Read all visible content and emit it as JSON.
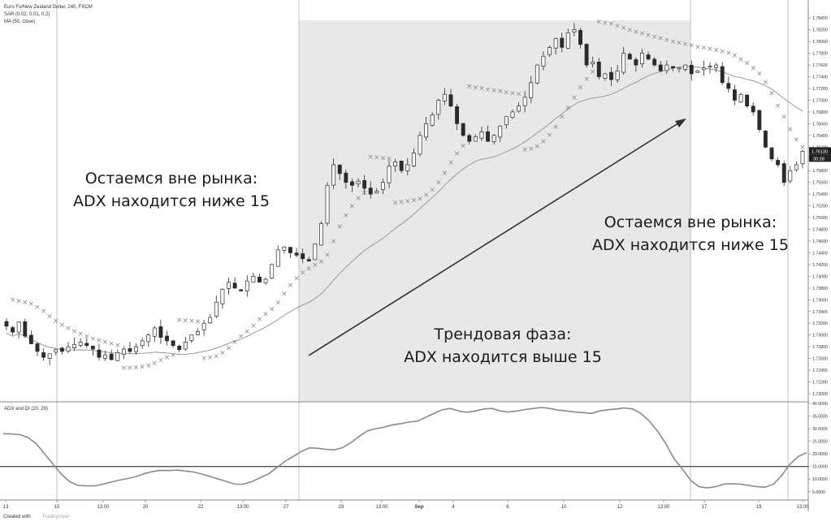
{
  "header": {
    "symbol": "Euro Fx/New Zealand Dollar, 240, FXCM",
    "sar_label": "SAR (0.02, 0.01, 0.2)",
    "ma_label": "MA (50, close)"
  },
  "sub_header": {
    "adx_label": "ADX and DI (20, 20)"
  },
  "annotations": {
    "left_line1": "Остаемся вне рынка:",
    "left_line2": "ADX находится ниже 15",
    "right_line1": "Остаемся вне рынка:",
    "right_line2": "ADX находится ниже 15",
    "center_line1": "Трендовая фаза:",
    "center_line2": "ADX находится выше 15"
  },
  "footer": {
    "created_with": "Created with",
    "brand": "TradingView"
  },
  "price_tags": {
    "last_price": "1.76130",
    "countdown": "30:28"
  },
  "colors": {
    "shade": "#e8e8e8",
    "candle": "#2a2a2a",
    "sar": "#8a8a8a",
    "ma": "#9a9a9a",
    "adx": "#8a8a8a",
    "threshold": "#555555"
  },
  "chart_data": [
    {
      "type": "line",
      "title": "",
      "series_desc": "EUR/NZD 4h candlesticks with Parabolic SAR and MA(50)",
      "y_ticks": [
        "1.78400",
        "1.78200",
        "1.78000",
        "1.77800",
        "1.77600",
        "1.77400",
        "1.77200",
        "1.77000",
        "1.76800",
        "1.76600",
        "1.76400",
        "1.76200",
        "1.76000",
        "1.75800",
        "1.75600",
        "1.75400",
        "1.75200",
        "1.75000",
        "1.74800",
        "1.74600",
        "1.74400",
        "1.74200",
        "1.74000",
        "1.73800",
        "1.73600",
        "1.73400",
        "1.73200",
        "1.73000",
        "1.72800",
        "1.72600",
        "1.72400",
        "1.72200",
        "1.72000"
      ],
      "ylim": [
        1.72,
        1.785
      ],
      "x_tick_labels": [
        "13",
        "15",
        "13:00",
        "20",
        "22",
        "13:00",
        "27",
        "29",
        "13:00",
        "Sep",
        "4",
        "6",
        "10",
        "12",
        "13:00",
        "17",
        "19",
        "13:00"
      ],
      "close": [
        1.7315,
        1.7305,
        1.7322,
        1.7298,
        1.7285,
        1.7272,
        1.7262,
        1.7268,
        1.7275,
        1.7272,
        1.728,
        1.7284,
        1.7288,
        1.7282,
        1.7276,
        1.7262,
        1.7266,
        1.7258,
        1.727,
        1.7276,
        1.7272,
        1.728,
        1.729,
        1.73,
        1.7312,
        1.7296,
        1.729,
        1.7282,
        1.7275,
        1.7288,
        1.73,
        1.7306,
        1.732,
        1.733,
        1.7356,
        1.7378,
        1.739,
        1.738,
        1.7375,
        1.7392,
        1.74,
        1.739,
        1.7395,
        1.742,
        1.7445,
        1.745,
        1.744,
        1.7436,
        1.743,
        1.7426,
        1.7455,
        1.749,
        1.7555,
        1.759,
        1.7575,
        1.756,
        1.7555,
        1.7562,
        1.755,
        1.754,
        1.7545,
        1.756,
        1.7588,
        1.7595,
        1.758,
        1.759,
        1.761,
        1.764,
        1.766,
        1.7675,
        1.77,
        1.771,
        1.769,
        1.766,
        1.764,
        1.763,
        1.7638,
        1.7646,
        1.763,
        1.764,
        1.7656,
        1.7672,
        1.768,
        1.769,
        1.7705,
        1.773,
        1.776,
        1.7775,
        1.779,
        1.7805,
        1.779,
        1.7815,
        1.782,
        1.7795,
        1.776,
        1.7765,
        1.774,
        1.7745,
        1.7735,
        1.775,
        1.778,
        1.777,
        1.776,
        1.778,
        1.777,
        1.776,
        1.775,
        1.776,
        1.7755,
        1.7755,
        1.776,
        1.7745,
        1.775,
        1.7755,
        1.7758,
        1.776,
        1.773,
        1.772,
        1.77,
        1.771,
        1.769,
        1.768,
        1.765,
        1.762,
        1.76,
        1.759,
        1.756,
        1.758,
        1.759,
        1.7613
      ]
    },
    {
      "type": "line",
      "title": "",
      "series_desc": "ADX and DI (20, 20)",
      "y_ticks": [
        "40.0000",
        "35.0000",
        "30.0000",
        "25.0000",
        "20.0000",
        "15.0000",
        "10.0000",
        "5.0000"
      ],
      "ylim": [
        3,
        40
      ],
      "threshold": 15,
      "values": [
        28,
        27.9,
        27.6,
        26.5,
        24,
        20,
        16,
        12,
        9,
        7.5,
        7.3,
        7.3,
        8,
        8.8,
        9.6,
        10.2,
        11,
        12.1,
        13,
        13.5,
        13.4,
        13.6,
        13.2,
        12.8,
        12,
        11,
        10,
        9,
        8,
        8,
        9,
        10.5,
        12,
        14.5,
        17,
        19,
        21,
        22.4,
        22.2,
        21.8,
        21.6,
        22.5,
        24.5,
        27,
        29.2,
        30,
        30.6,
        31.5,
        32,
        32.6,
        33,
        34.5,
        36,
        37.5,
        38,
        37,
        36.5,
        37,
        37.8,
        38,
        37,
        36.6,
        37,
        37.6,
        38,
        38.4,
        38,
        37.4,
        37,
        36.6,
        36.4,
        36,
        37,
        37.5,
        37.8,
        38.2,
        37.8,
        36,
        33,
        29,
        24,
        18,
        14,
        9.5,
        7,
        6.5,
        7,
        8,
        8.2,
        8,
        7.5,
        7,
        6.8,
        8,
        11.5,
        16,
        19,
        20.5
      ]
    }
  ]
}
